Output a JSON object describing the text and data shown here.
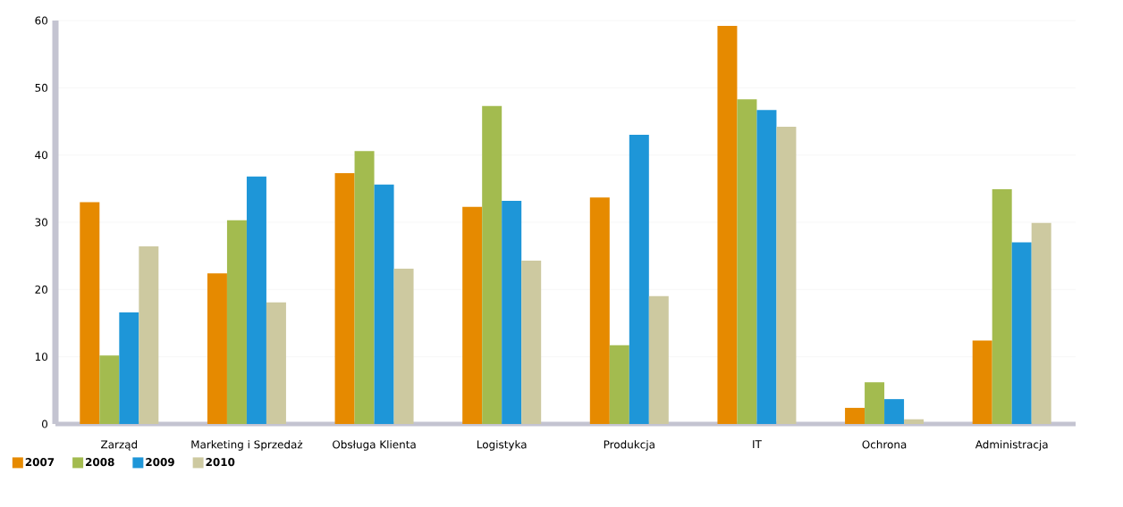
{
  "chart_data": {
    "type": "bar",
    "categories": [
      "Zarząd",
      "Marketing i Sprzedaż",
      "Obsługa Klienta",
      "Logistyka",
      "Produkcja",
      "IT",
      "Ochrona",
      "Administracja"
    ],
    "series": [
      {
        "name": "2007",
        "color": "#e68a00",
        "values": [
          33,
          22.4,
          37.3,
          32.3,
          33.7,
          59.2,
          2.4,
          12.4
        ]
      },
      {
        "name": "2008",
        "color": "#a3bb4f",
        "values": [
          10.2,
          30.3,
          40.6,
          47.3,
          11.7,
          48.3,
          6.2,
          34.9
        ]
      },
      {
        "name": "2009",
        "color": "#1e96d8",
        "values": [
          16.6,
          36.8,
          35.6,
          33.2,
          43,
          46.7,
          3.7,
          27
        ]
      },
      {
        "name": "2010",
        "color": "#cdc9a0",
        "values": [
          26.4,
          18.1,
          23.1,
          24.3,
          19,
          44.2,
          0.7,
          29.9
        ]
      }
    ],
    "ylim": [
      0,
      60
    ],
    "yticks": [
      0,
      10,
      20,
      30,
      40,
      50,
      60
    ],
    "grid": "y",
    "legend": "bottom left"
  }
}
